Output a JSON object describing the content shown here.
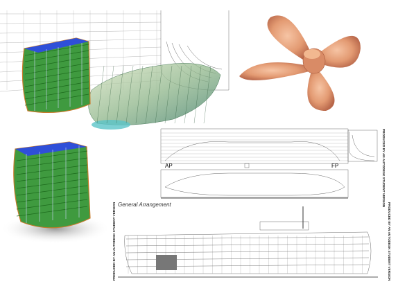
{
  "drawing_labels": {
    "aft_perpendicular": "AP",
    "forward_perpendicular": "FP",
    "general_arrangement": "General Arrangement",
    "watermark": "PRODUCED BY AN AUTODESK STUDENT VERSION"
  }
}
